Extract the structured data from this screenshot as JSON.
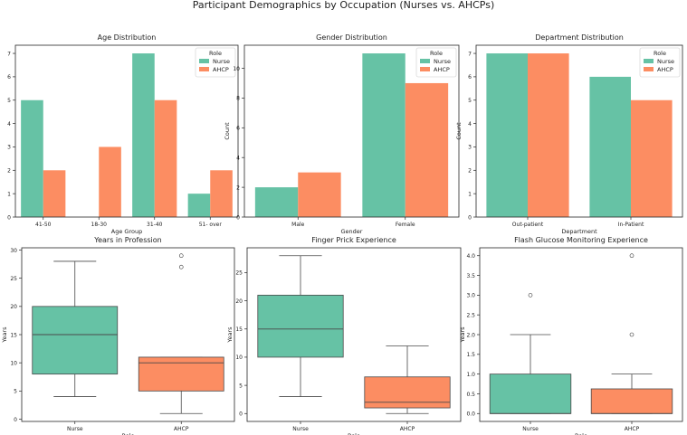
{
  "figure_title": "Participant Demographics by Occupation (Nurses vs. AHCPs)",
  "colors": {
    "nurse": "#66c2a5",
    "ahcp": "#fc8d62",
    "axis": "#262626",
    "median": "#4a4a4a"
  },
  "chart_data": [
    {
      "type": "bar",
      "title": "Age Distribution",
      "xlabel": "Age Group",
      "ylabel": "Count",
      "categories": [
        "41-50",
        "18-30",
        "31-40",
        "51- over"
      ],
      "series": [
        {
          "name": "Nurse",
          "values": [
            5,
            0,
            7,
            1
          ]
        },
        {
          "name": "AHCP",
          "values": [
            2,
            3,
            5,
            2
          ]
        }
      ],
      "ylim": [
        0,
        7.35
      ],
      "yticks": [
        0,
        1,
        2,
        3,
        4,
        5,
        6,
        7
      ],
      "legend": {
        "title": "Role",
        "entries": [
          "Nurse",
          "AHCP"
        ],
        "position": "top-right"
      }
    },
    {
      "type": "bar",
      "title": "Gender Distribution",
      "xlabel": "Gender",
      "ylabel": "Count",
      "categories": [
        "Male",
        "Female"
      ],
      "series": [
        {
          "name": "Nurse",
          "values": [
            2,
            11
          ]
        },
        {
          "name": "AHCP",
          "values": [
            3,
            9
          ]
        }
      ],
      "ylim": [
        0,
        11.55
      ],
      "yticks": [
        0,
        2,
        4,
        6,
        8,
        10
      ],
      "legend": {
        "title": "Role",
        "entries": [
          "Nurse",
          "AHCP"
        ],
        "position": "top-right"
      }
    },
    {
      "type": "bar",
      "title": "Department Distribution",
      "xlabel": "Department",
      "ylabel": "Count",
      "categories": [
        "Out-patient",
        "In-Patient"
      ],
      "series": [
        {
          "name": "Nurse",
          "values": [
            7,
            6
          ]
        },
        {
          "name": "AHCP",
          "values": [
            7,
            5
          ]
        }
      ],
      "ylim": [
        0,
        7.35
      ],
      "yticks": [
        0,
        1,
        2,
        3,
        4,
        5,
        6,
        7
      ],
      "legend": {
        "title": "Role",
        "entries": [
          "Nurse",
          "AHCP"
        ],
        "position": "top-right"
      }
    },
    {
      "type": "box",
      "title": "Years in Profession",
      "xlabel": "Role",
      "ylabel": "Years",
      "categories": [
        "Nurse",
        "AHCP"
      ],
      "boxes": [
        {
          "name": "Nurse",
          "whisker_low": 4,
          "q1": 8,
          "median": 15,
          "q3": 20,
          "whisker_high": 28,
          "outliers": []
        },
        {
          "name": "AHCP",
          "whisker_low": 1,
          "q1": 5,
          "median": 10,
          "q3": 11,
          "whisker_high": 11,
          "outliers": [
            27,
            29
          ]
        }
      ],
      "ylim": [
        -0.4,
        30.4
      ],
      "yticks": [
        0,
        5,
        10,
        15,
        20,
        25,
        30
      ]
    },
    {
      "type": "box",
      "title": "Finger Prick Experience",
      "xlabel": "Role",
      "ylabel": "Years",
      "categories": [
        "Nurse",
        "AHCP"
      ],
      "boxes": [
        {
          "name": "Nurse",
          "whisker_low": 3,
          "q1": 10,
          "median": 15,
          "q3": 21,
          "whisker_high": 28,
          "outliers": []
        },
        {
          "name": "AHCP",
          "whisker_low": 0,
          "q1": 1,
          "median": 2,
          "q3": 6.5,
          "whisker_high": 12,
          "outliers": []
        }
      ],
      "ylim": [
        -1.4,
        29.4
      ],
      "yticks": [
        0,
        5,
        10,
        15,
        20,
        25
      ]
    },
    {
      "type": "box",
      "title": "Flash Glucose Monitoring Experience",
      "xlabel": "Role",
      "ylabel": "Years",
      "categories": [
        "Nurse",
        "AHCP"
      ],
      "boxes": [
        {
          "name": "Nurse",
          "whisker_low": 0,
          "q1": 0,
          "median": 0,
          "q3": 1,
          "whisker_high": 2,
          "outliers": [
            3
          ]
        },
        {
          "name": "AHCP",
          "whisker_low": 0,
          "q1": 0,
          "median": 0,
          "q3": 0.625,
          "whisker_high": 1,
          "outliers": [
            2,
            4
          ]
        }
      ],
      "ylim": [
        -0.2,
        4.2
      ],
      "yticks": [
        0.0,
        0.5,
        1.0,
        1.5,
        2.0,
        2.5,
        3.0,
        3.5,
        4.0
      ]
    }
  ]
}
